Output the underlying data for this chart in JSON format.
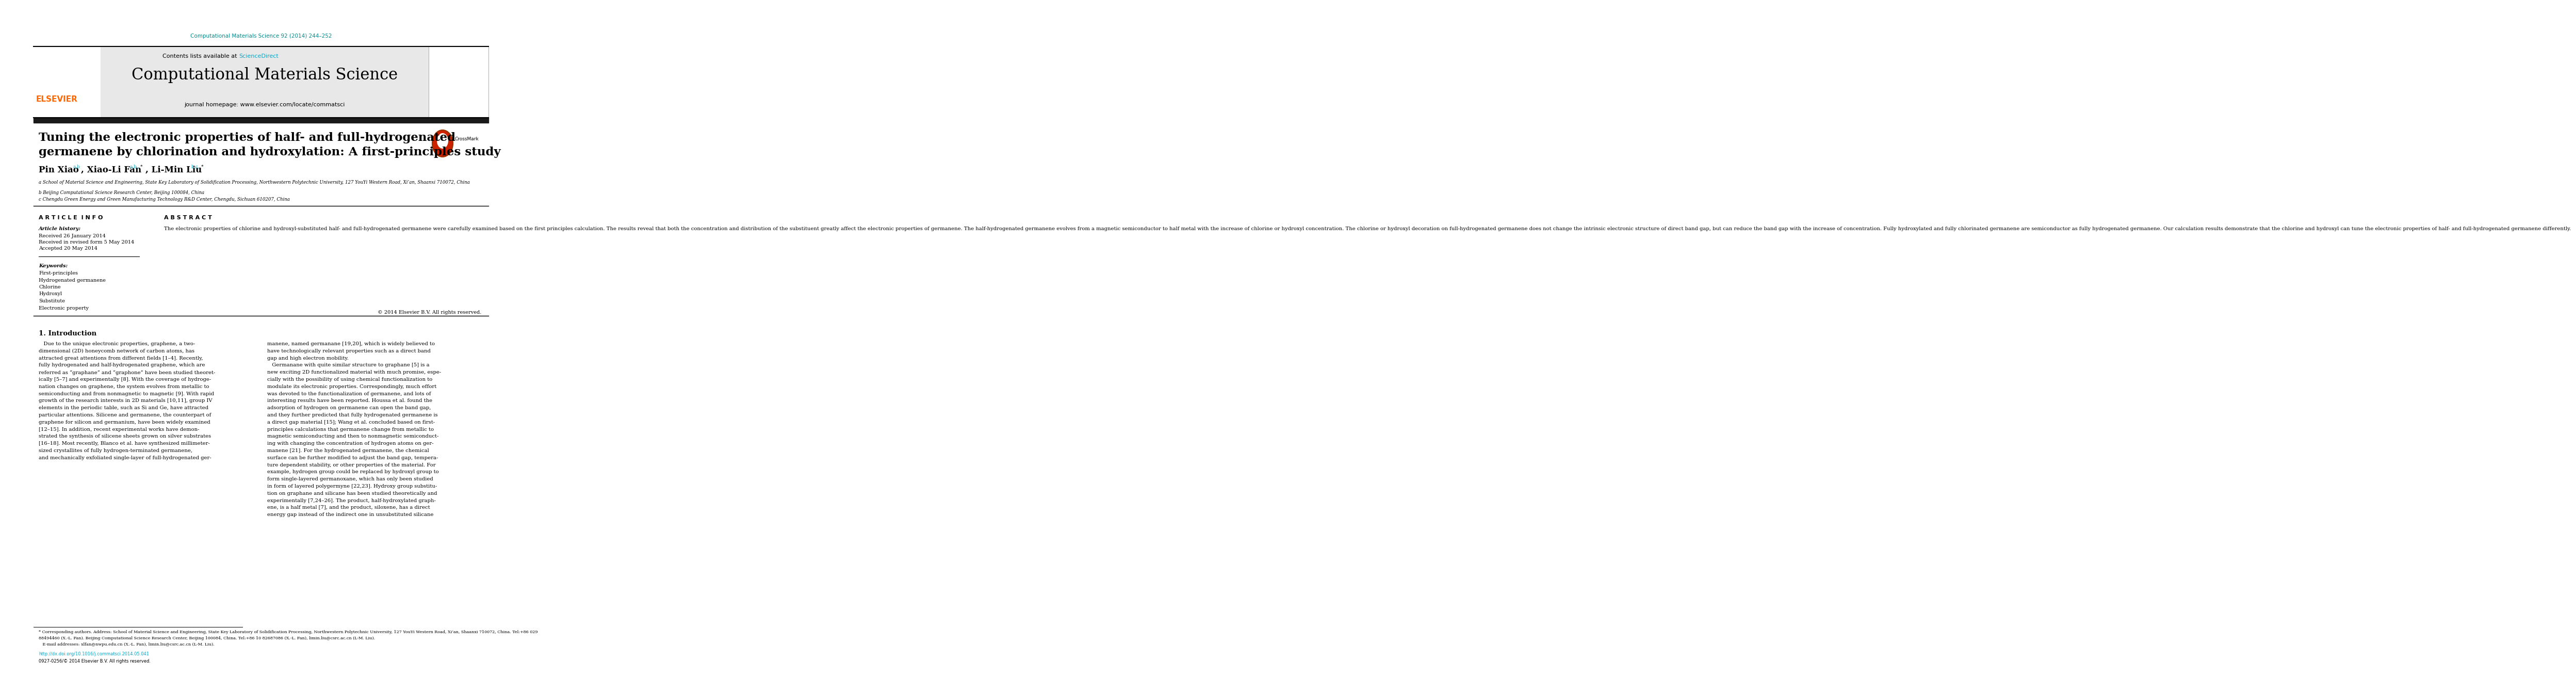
{
  "journal_ref": "Computational Materials Science 92 (2014) 244–252",
  "journal_ref_color": "#008B8B",
  "sciencedirect_color": "#00AACC",
  "journal_name": "Computational Materials Science",
  "journal_homepage": "journal homepage: www.elsevier.com/locate/commatsci",
  "elsevier_color": "#FF6600",
  "title_line1": "Tuning the electronic properties of half- and full-hydrogenated",
  "title_line2": "germanene by chlorination and hydroxylation: A first-principles study",
  "affil_a": "a School of Material Science and Engineering, State Key Laboratory of Solidification Processing, Northwestern Polytechnic University, 127 YouYi Western Road, Xi’an, Shaanxi 710072, China",
  "affil_b": "b Beijing Computational Science Research Center, Beijing 100084, China",
  "affil_c": "c Chengdu Green Energy and Green Manufacturing Technology R&D Center, Chengdu, Sichuan 610207, China",
  "article_info_title": "A R T I C L E  I N F O",
  "abstract_title": "A B S T R A C T",
  "article_history_label": "Article history:",
  "received1": "Received 26 January 2014",
  "received2": "Received in revised form 5 May 2014",
  "accepted": "Accepted 20 May 2014",
  "keywords_label": "Keywords:",
  "keywords": [
    "First-principles",
    "Hydrogenated germanene",
    "Chlorine",
    "Hydroxyl",
    "Substitute",
    "Electronic property"
  ],
  "abstract_text": "The electronic properties of chlorine and hydroxyl-substituted half- and full-hydrogenated germanene were carefully examined based on the first principles calculation. The results reveal that both the concentration and distribution of the substituent greatly affect the electronic properties of germanene. The half-hydrogenated germanene evolves from a magnetic semiconductor to half metal with the increase of chlorine or hydroxyl concentration. The chlorine or hydroxyl decoration on full-hydrogenated germanene does not change the intrinsic electronic structure of direct band gap, but can reduce the band gap with the increase of concentration. Fully hydroxylated and fully chlorinated germanene are semiconductor as fully hydrogenated germanene. Our calculation results demonstrate that the chlorine and hydroxyl can tune the electronic properties of half- and full-hydrogenated germanene differently.",
  "copyright": "© 2014 Elsevier B.V. All rights reserved.",
  "section1_title": "1. Introduction",
  "intro_col1_lines": [
    "   Due to the unique electronic properties, graphene, a two-",
    "dimensional (2D) honeycomb network of carbon atoms, has",
    "attracted great attentions from different fields [1–4]. Recently,",
    "fully hydrogenated and half-hydrogenated graphene, which are",
    "referred as “graphane” and “graphone” have been studied theoret-",
    "ically [5–7] and experimentally [8]. With the coverage of hydroge-",
    "nation changes on graphene, the system evolves from metallic to",
    "semiconducting and from nonmagnetic to magnetic [9]. With rapid",
    "growth of the research interests in 2D materials [10,11], group IV",
    "elements in the periodic table, such as Si and Ge, have attracted",
    "particular attentions. Silicene and germanene, the counterpart of",
    "graphene for silicon and germanium, have been widely examined",
    "[12–15]. In addition, recent experimental works have demon-",
    "strated the synthesis of silicene sheets grown on silver substrates",
    "[16–18]. Most recently, Blanco et al. have synthesized millimeter-",
    "sized crystallites of fully hydrogen-terminated germanene,",
    "and mechanically exfoliated single-layer of full-hydrogenated ger-"
  ],
  "intro_col2_lines": [
    "manene, named germanane [19,20], which is widely believed to",
    "have technologically relevant properties such as a direct band",
    "gap and high electron mobility.",
    "   Germanane with quite similar structure to graphane [5] is a",
    "new exciting 2D functionalized material with much promise, espe-",
    "cially with the possibility of using chemical functionalization to",
    "modulate its electronic properties. Correspondingly, much effort",
    "was devoted to the functionalization of germanene, and lots of",
    "interesting results have been reported. Houssa et al. found the",
    "adsorption of hydrogen on germanene can open the band gap,",
    "and they further predicted that fully hydrogenated germanene is",
    "a direct gap material [15]; Wang et al. concluded based on first-",
    "principles calculations that germanene change from metallic to",
    "magnetic semiconducting and then to nonmagnetic semiconduct-",
    "ing with changing the concentration of hydrogen atoms on ger-",
    "manene [21]. For the hydrogenated germanene, the chemical",
    "surface can be further modified to adjust the band gap, tempera-",
    "ture dependent stability, or other properties of the material. For",
    "example, hydrogen group could be replaced by hydroxyl group to",
    "form single-layered germanoxane, which has only been studied",
    "in form of layered polygermyne [22,23]. Hydroxy group substitu-",
    "tion on graphane and silicane has been studied theoretically and",
    "experimentally [7,24–26]. The product, half-hydroxylated graph-",
    "ene, is a half metal [7], and the product, siloxene, has a direct",
    "energy gap instead of the indirect one in unsubstituted silicane"
  ],
  "footnote_line1": "* Corresponding authors. Address: School of Material Science and Engineering, State Key Laboratory of Solidification Processing, Northwestern Polytechnic University, 127 YouYi Western Road, Xi’an, Shaanxi 710072, China. Tel:+86 029",
  "footnote_line2": "88494460 (X.-L. Fan). Beijing Computational Science Research Center, Beijing 100084, China. Tel:+86 10 82687086 (X.-L. Fan), limin.liu@csrc.ac.cn (L-M. Liu).",
  "footnote_line3": "   E-mail addresses: xlfan@nwpu.edu.cn (X.-L. Fan), limin.liu@csrc.ac.cn (L-M. Liu).",
  "doi_line": "http://dx.doi.org/10.1016/j.commatsci.2014.05.041",
  "issn_line": "0927-0256/© 2014 Elsevier B.V. All rights reserved.",
  "bg_color": "#FFFFFF",
  "header_bg": "#E8E8E8",
  "black_bar_color": "#1A1A1A"
}
